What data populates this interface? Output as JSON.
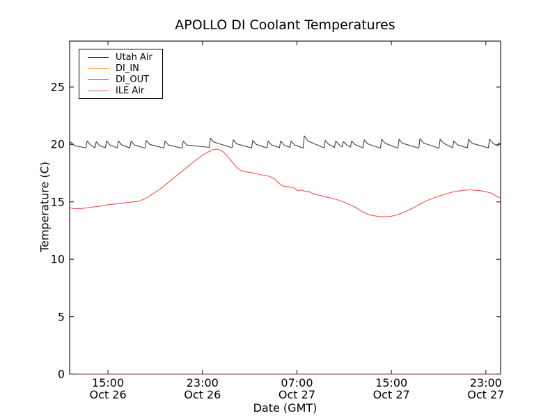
{
  "chart_data": {
    "type": "line",
    "title": "APOLLO DI Coolant Temperatures",
    "xlabel": "Date (GMT)",
    "ylabel": "Temperature (C)",
    "x_unit": "hours since Oct 26 00:00 GMT",
    "xlim": [
      11.75,
      48.25
    ],
    "ylim": [
      0,
      29
    ],
    "grid": false,
    "legend_position": "upper left",
    "x_ticks": [
      {
        "pos": 15,
        "time": "15:00",
        "date": "Oct 26"
      },
      {
        "pos": 23,
        "time": "23:00",
        "date": "Oct 26"
      },
      {
        "pos": 31,
        "time": "07:00",
        "date": "Oct 27"
      },
      {
        "pos": 39,
        "time": "15:00",
        "date": "Oct 27"
      },
      {
        "pos": 47,
        "time": "23:00",
        "date": "Oct 27"
      }
    ],
    "y_ticks": [
      0,
      5,
      10,
      15,
      20,
      25
    ],
    "series": [
      {
        "name": "Utah Air",
        "color": "#3d3d3d",
        "points": [
          [
            11.75,
            19.85
          ],
          [
            11.86,
            20.2
          ],
          [
            12.16,
            19.9
          ],
          [
            13.13,
            19.7
          ],
          [
            13.23,
            20.3
          ],
          [
            13.53,
            19.95
          ],
          [
            13.9,
            19.72
          ],
          [
            14.0,
            20.25
          ],
          [
            14.3,
            19.9
          ],
          [
            14.78,
            19.72
          ],
          [
            14.88,
            20.3
          ],
          [
            15.18,
            19.95
          ],
          [
            15.78,
            19.7
          ],
          [
            15.88,
            20.3
          ],
          [
            16.18,
            19.95
          ],
          [
            16.85,
            19.7
          ],
          [
            16.95,
            20.3
          ],
          [
            17.25,
            19.95
          ],
          [
            18.14,
            19.68
          ],
          [
            18.24,
            20.35
          ],
          [
            18.54,
            20.0
          ],
          [
            19.73,
            19.68
          ],
          [
            19.83,
            20.3
          ],
          [
            20.13,
            19.95
          ],
          [
            21.27,
            19.68
          ],
          [
            21.37,
            20.3
          ],
          [
            21.67,
            19.95
          ],
          [
            23.57,
            19.75
          ],
          [
            23.67,
            20.55
          ],
          [
            23.97,
            20.2
          ],
          [
            25.51,
            19.72
          ],
          [
            25.61,
            20.4
          ],
          [
            25.91,
            20.05
          ],
          [
            27.16,
            19.7
          ],
          [
            27.26,
            20.35
          ],
          [
            27.56,
            20.0
          ],
          [
            28.46,
            19.7
          ],
          [
            28.56,
            20.3
          ],
          [
            28.86,
            19.95
          ],
          [
            29.52,
            19.72
          ],
          [
            29.62,
            20.3
          ],
          [
            29.92,
            19.95
          ],
          [
            30.41,
            19.75
          ],
          [
            30.51,
            20.3
          ],
          [
            30.81,
            19.95
          ],
          [
            31.53,
            19.7
          ],
          [
            31.63,
            20.75
          ],
          [
            31.93,
            20.3
          ],
          [
            33.3,
            19.7
          ],
          [
            33.4,
            20.35
          ],
          [
            33.7,
            20.0
          ],
          [
            34.18,
            19.75
          ],
          [
            34.28,
            20.3
          ],
          [
            34.58,
            19.98
          ],
          [
            34.83,
            19.78
          ],
          [
            34.93,
            20.25
          ],
          [
            35.23,
            19.95
          ],
          [
            35.54,
            19.78
          ],
          [
            35.64,
            20.3
          ],
          [
            35.94,
            19.98
          ],
          [
            36.6,
            19.7
          ],
          [
            36.7,
            20.4
          ],
          [
            37.0,
            20.05
          ],
          [
            38.07,
            19.68
          ],
          [
            38.17,
            20.45
          ],
          [
            38.47,
            20.1
          ],
          [
            39.55,
            19.68
          ],
          [
            39.65,
            20.45
          ],
          [
            39.95,
            20.1
          ],
          [
            41.32,
            19.68
          ],
          [
            41.42,
            20.5
          ],
          [
            41.72,
            20.12
          ],
          [
            43.03,
            19.68
          ],
          [
            43.13,
            20.45
          ],
          [
            43.43,
            20.1
          ],
          [
            44.19,
            19.72
          ],
          [
            44.29,
            20.3
          ],
          [
            44.59,
            19.98
          ],
          [
            45.44,
            19.7
          ],
          [
            45.54,
            20.45
          ],
          [
            45.84,
            20.1
          ],
          [
            47.21,
            19.7
          ],
          [
            47.31,
            20.45
          ],
          [
            47.61,
            20.1
          ],
          [
            48.0,
            19.85
          ],
          [
            48.1,
            20.15
          ],
          [
            48.25,
            20.0
          ]
        ]
      },
      {
        "name": "DI_IN",
        "color": "#fcaf4f",
        "opacity": 0.9,
        "points": [
          [
            11.75,
            0
          ],
          [
            48.25,
            0
          ]
        ]
      },
      {
        "name": "DI_OUT",
        "color": "#99489c",
        "opacity": 0.55,
        "points": [
          [
            11.75,
            0
          ],
          [
            48.25,
            0
          ]
        ]
      },
      {
        "name": "ILE Air",
        "color": "#f1504b",
        "points": [
          [
            11.75,
            14.5
          ],
          [
            12.1,
            14.4
          ],
          [
            12.7,
            14.4
          ],
          [
            13.3,
            14.5
          ],
          [
            14.1,
            14.6
          ],
          [
            15.0,
            14.75
          ],
          [
            15.9,
            14.85
          ],
          [
            16.8,
            14.95
          ],
          [
            17.6,
            15.05
          ],
          [
            18.2,
            15.3
          ],
          [
            18.8,
            15.7
          ],
          [
            19.4,
            16.1
          ],
          [
            20.0,
            16.6
          ],
          [
            20.6,
            17.1
          ],
          [
            21.2,
            17.6
          ],
          [
            21.8,
            18.1
          ],
          [
            22.4,
            18.6
          ],
          [
            22.9,
            19.0
          ],
          [
            23.4,
            19.3
          ],
          [
            23.9,
            19.55
          ],
          [
            24.3,
            19.6
          ],
          [
            24.7,
            19.4
          ],
          [
            25.1,
            19.0
          ],
          [
            25.5,
            18.5
          ],
          [
            25.9,
            18.0
          ],
          [
            26.3,
            17.7
          ],
          [
            26.8,
            17.6
          ],
          [
            27.4,
            17.5
          ],
          [
            28.0,
            17.35
          ],
          [
            28.6,
            17.25
          ],
          [
            29.1,
            17.0
          ],
          [
            29.5,
            16.6
          ],
          [
            29.9,
            16.35
          ],
          [
            30.4,
            16.3
          ],
          [
            30.8,
            16.2
          ],
          [
            31.1,
            15.95
          ],
          [
            31.4,
            16.05
          ],
          [
            31.7,
            15.9
          ],
          [
            32.0,
            15.9
          ],
          [
            32.4,
            15.7
          ],
          [
            33.0,
            15.55
          ],
          [
            33.6,
            15.4
          ],
          [
            34.2,
            15.25
          ],
          [
            34.8,
            15.05
          ],
          [
            35.4,
            14.8
          ],
          [
            36.0,
            14.5
          ],
          [
            36.6,
            14.1
          ],
          [
            37.2,
            13.85
          ],
          [
            37.8,
            13.75
          ],
          [
            38.4,
            13.7
          ],
          [
            39.0,
            13.75
          ],
          [
            39.6,
            13.9
          ],
          [
            40.2,
            14.15
          ],
          [
            40.8,
            14.45
          ],
          [
            41.4,
            14.8
          ],
          [
            42.0,
            15.1
          ],
          [
            42.6,
            15.35
          ],
          [
            43.2,
            15.55
          ],
          [
            43.8,
            15.75
          ],
          [
            44.4,
            15.9
          ],
          [
            45.0,
            16.0
          ],
          [
            45.6,
            16.05
          ],
          [
            46.2,
            16.0
          ],
          [
            46.7,
            15.95
          ],
          [
            47.1,
            15.85
          ],
          [
            47.5,
            15.75
          ],
          [
            47.9,
            15.5
          ],
          [
            48.1,
            15.4
          ],
          [
            48.25,
            15.3
          ]
        ]
      }
    ],
    "colors": {
      "frame": "#2b2b2b",
      "background": "#ffffff"
    }
  }
}
